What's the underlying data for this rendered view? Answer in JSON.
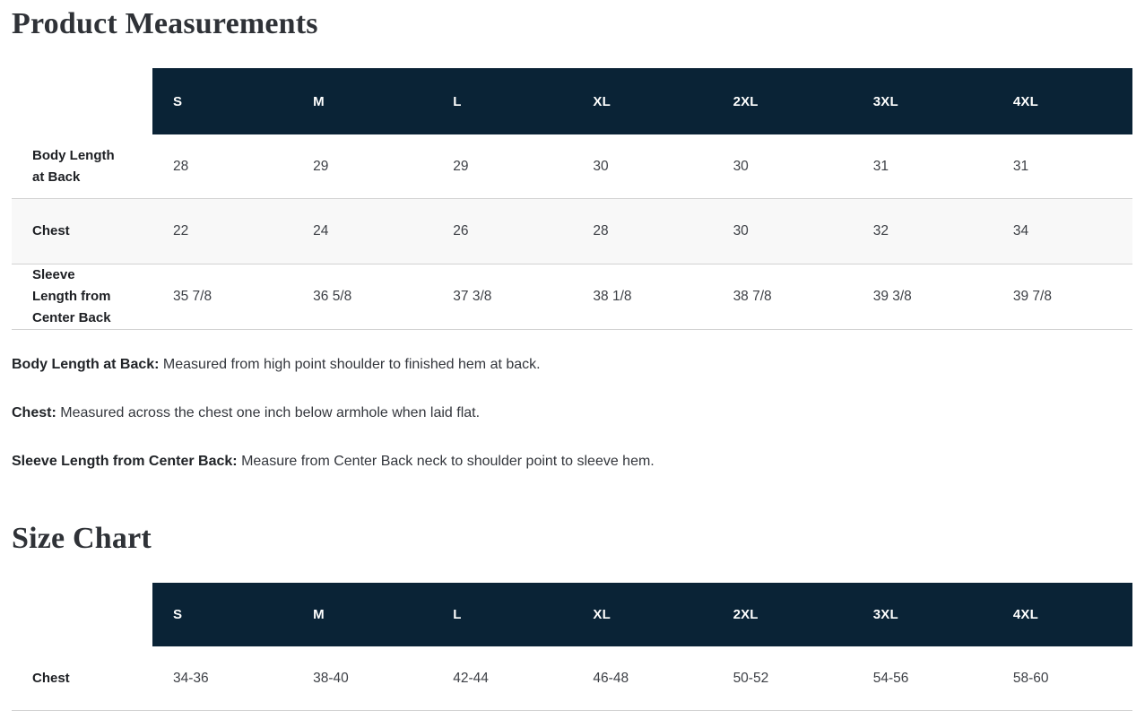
{
  "measurements": {
    "title": "Product Measurements",
    "table": {
      "columns": [
        "S",
        "M",
        "L",
        "XL",
        "2XL",
        "3XL",
        "4XL"
      ],
      "rows": [
        {
          "label": "Body Length at Back",
          "values": [
            "28",
            "29",
            "29",
            "30",
            "30",
            "31",
            "31"
          ]
        },
        {
          "label": "Chest",
          "values": [
            "22",
            "24",
            "26",
            "28",
            "30",
            "32",
            "34"
          ]
        },
        {
          "label": "Sleeve Length from Center Back",
          "values": [
            "35 7/8",
            "36 5/8",
            "37 3/8",
            "38 1/8",
            "38 7/8",
            "39 3/8",
            "39 7/8"
          ]
        }
      ]
    },
    "notes": [
      {
        "term": "Body Length at Back:",
        "definition": "Measured from high point shoulder to finished hem at back."
      },
      {
        "term": "Chest:",
        "definition": "Measured across the chest one inch below armhole when laid flat."
      },
      {
        "term": "Sleeve Length from Center Back:",
        "definition": "Measure from Center Back neck to shoulder point to sleeve hem."
      }
    ]
  },
  "size_chart": {
    "title": "Size Chart",
    "table": {
      "columns": [
        "S",
        "M",
        "L",
        "XL",
        "2XL",
        "3XL",
        "4XL"
      ],
      "rows": [
        {
          "label": "Chest",
          "values": [
            "34-36",
            "38-40",
            "42-44",
            "46-48",
            "50-52",
            "54-56",
            "58-60"
          ]
        }
      ]
    }
  },
  "colors": {
    "table_header_bg": "#0a2336",
    "table_header_text": "#ffffff",
    "zebra_row_bg": "#f8f8f8",
    "row_border": "#d2d2d2",
    "heading_text": "#2f3237",
    "label_text": "#1d1f23",
    "value_text": "#3c3f45"
  }
}
